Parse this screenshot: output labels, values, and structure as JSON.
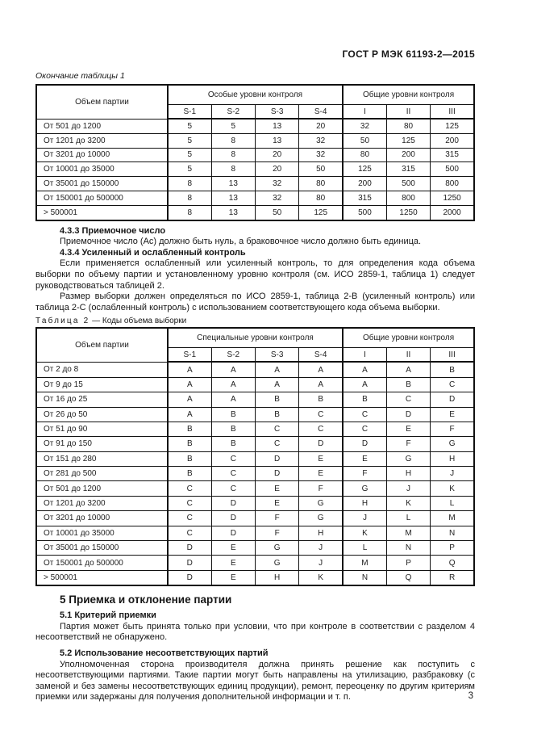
{
  "header": {
    "doc_number": "ГОСТ Р МЭК 61193-2—2015"
  },
  "table1": {
    "caption": "Окончание таблицы 1",
    "lot_header": "Объем партии",
    "group_special": "Особые уровни контроля",
    "group_general": "Общие уровни контроля",
    "special_levels": [
      "S-1",
      "S-2",
      "S-3",
      "S-4"
    ],
    "general_levels": [
      "I",
      "II",
      "III"
    ],
    "rows": [
      [
        "От 501 до 1200",
        "5",
        "5",
        "13",
        "20",
        "32",
        "80",
        "125"
      ],
      [
        "От 1201 до 3200",
        "5",
        "8",
        "13",
        "32",
        "50",
        "125",
        "200"
      ],
      [
        "От 3201 до 10000",
        "5",
        "8",
        "20",
        "32",
        "80",
        "200",
        "315"
      ],
      [
        "От 10001 до 35000",
        "5",
        "8",
        "20",
        "50",
        "125",
        "315",
        "500"
      ],
      [
        "От 35001 до 150000",
        "8",
        "13",
        "32",
        "80",
        "200",
        "500",
        "800"
      ],
      [
        "От 150001 до 500000",
        "8",
        "13",
        "32",
        "80",
        "315",
        "800",
        "1250"
      ],
      [
        "> 500001",
        "8",
        "13",
        "50",
        "125",
        "500",
        "1250",
        "2000"
      ]
    ]
  },
  "section4": {
    "s433_title": "4.3.3 Приемочное число",
    "s433_text": "Приемочное число (Ас) должно быть нуль, а браковочное число должно быть единица.",
    "s434_title": "4.3.4 Усиленный и ослабленный контроль",
    "s434_p1": "Если применяется ослабленный или усиленный контроль, то для определения  кода объема выборки по объему партии и установленному уровню контроля (см. ИСО 2859-1, таблица 1) следует руководствоваться таблицей 2.",
    "s434_p2": "Размер выборки должен определяться по ИСО 2859-1, таблица 2-В (усиленный контроль) или таблица 2-С (ослабленный контроль) с использованием соответствующего кода объема выборки."
  },
  "table2": {
    "caption_label": "Таблица 2",
    "caption_text": "—  Коды объема выборки",
    "lot_header": "Объем партии",
    "group_special": "Специальные уровни контроля",
    "group_general": "Общие уровни контроля",
    "special_levels": [
      "S-1",
      "S-2",
      "S-3",
      "S-4"
    ],
    "general_levels": [
      "I",
      "II",
      "III"
    ],
    "rows": [
      [
        "От 2 до 8",
        "A",
        "A",
        "A",
        "A",
        "A",
        "A",
        "B"
      ],
      [
        "От 9 до 15",
        "A",
        "A",
        "A",
        "A",
        "A",
        "B",
        "C"
      ],
      [
        "От 16 до 25",
        "A",
        "A",
        "B",
        "B",
        "B",
        "C",
        "D"
      ],
      [
        "От 26 до 50",
        "A",
        "B",
        "B",
        "C",
        "C",
        "D",
        "E"
      ],
      [
        "От 51 до 90",
        "B",
        "B",
        "C",
        "C",
        "C",
        "E",
        "F"
      ],
      [
        "От 91 до 150",
        "B",
        "B",
        "C",
        "D",
        "D",
        "F",
        "G"
      ],
      [
        "От 151 до 280",
        "B",
        "C",
        "D",
        "E",
        "E",
        "G",
        "H"
      ],
      [
        "От 281 до 500",
        "B",
        "C",
        "D",
        "E",
        "F",
        "H",
        "J"
      ],
      [
        "От 501 до 1200",
        "C",
        "C",
        "E",
        "F",
        "G",
        "J",
        "K"
      ],
      [
        "От 1201 до 3200",
        "C",
        "D",
        "E",
        "G",
        "H",
        "K",
        "L"
      ],
      [
        "От 3201 до 10000",
        "C",
        "D",
        "F",
        "G",
        "J",
        "L",
        "M"
      ],
      [
        "От 10001 до 35000",
        "C",
        "D",
        "F",
        "H",
        "K",
        "M",
        "N"
      ],
      [
        "От 35001 до 150000",
        "D",
        "E",
        "G",
        "J",
        "L",
        "N",
        "P"
      ],
      [
        "От 150001 до 500000",
        "D",
        "E",
        "G",
        "J",
        "M",
        "P",
        "Q"
      ],
      [
        "> 500001",
        "D",
        "E",
        "H",
        "K",
        "N",
        "Q",
        "R"
      ]
    ]
  },
  "section5": {
    "title": "5 Приемка и отклонение партии",
    "s51_title": "5.1 Критерий приемки",
    "s51_text": "Партия может быть принята только при условии, что при контроле в соответствии с разделом 4 несоответствий не обнаружено.",
    "s52_title": "5.2 Использование несоответствующих партий",
    "s52_text": "Уполномоченная сторона производителя должна принять решение как поступить с несоответствующими партиями. Такие партии могут быть направлены на утилизацию, разбраковку (с заменой и без замены несоответствующих единиц продукции), ремонт, переоценку по другим критериям приемки или задержаны для получения дополнительной информации и т. п."
  },
  "footer": {
    "page_number": "3"
  }
}
